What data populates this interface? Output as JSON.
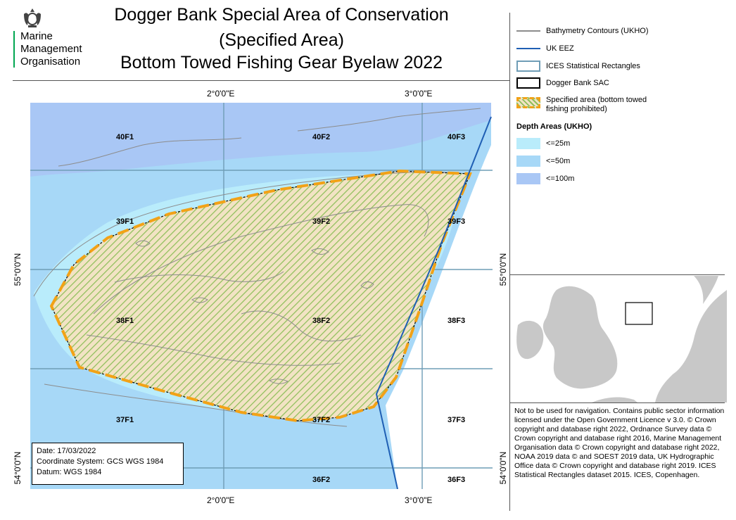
{
  "header": {
    "title_lines": [
      "Dogger Bank Special Area of Conservation",
      "(Specified Area)",
      "Bottom Towed Fishing Gear Byelaw 2022"
    ],
    "org_lines": [
      "Marine",
      "Management",
      "Organisation"
    ],
    "logo_icon": "royal-crest-icon",
    "accent_color": "#00a651"
  },
  "map": {
    "ticks_top": [
      "2°0'0\"E",
      "3°0'0\"E"
    ],
    "ticks_bottom": [
      "2°0'0\"E",
      "3°0'0\"E"
    ],
    "ticks_left": [
      "55°0'0\"N",
      "54°0'0\"N"
    ],
    "ticks_right": [
      "55°0'0\"N",
      "54°0'0\"N"
    ],
    "rectangles": [
      "40F1",
      "40F2",
      "40F3",
      "39F1",
      "39F2",
      "39F3",
      "38F1",
      "38F2",
      "38F3",
      "37F1",
      "37F2",
      "37F3",
      "36F2",
      "36F3"
    ],
    "colors": {
      "depth_25": "#b9ecfb",
      "depth_50": "#a7d8f7",
      "depth_100": "#a9c7f5",
      "eez": "#1f5fb4",
      "ices": "#6f9db6",
      "specified_area": "#f2a217",
      "hatch": "#8fbf5a",
      "contour": "#8c8c8c"
    }
  },
  "legend": {
    "contours": "Bathymetry Contours (UKHO)",
    "eez": "UK EEZ",
    "ices": "ICES Statistical Rectangles",
    "sac": "Dogger Bank SAC",
    "specified_line1": "Specified area (bottom towed",
    "specified_line2": "fishing prohibited)",
    "depth_title": "Depth Areas (UKHO)",
    "depth_25": "<=25m",
    "depth_50": "<=50m",
    "depth_100": "<=100m"
  },
  "info": {
    "date": "Date: 17/03/2022",
    "coord_system": "Coordinate System: GCS WGS 1984",
    "datum": "Datum: WGS 1984"
  },
  "notice": {
    "text": "Not to be used for navigation. Contains public sector information licensed under the Open Government Licence v 3.0. © Crown copyright and database right 2022, Ordnance Survey data © Crown copyright and database right 2016, Marine Management Organisation data © Crown copyright and database right 2022, NOAA 2019 data © and SOEST 2019 data, UK Hydrographic Office data © Crown copyright and database right 2019. ICES Statistical Rectangles dataset 2015. ICES, Copenhagen."
  }
}
